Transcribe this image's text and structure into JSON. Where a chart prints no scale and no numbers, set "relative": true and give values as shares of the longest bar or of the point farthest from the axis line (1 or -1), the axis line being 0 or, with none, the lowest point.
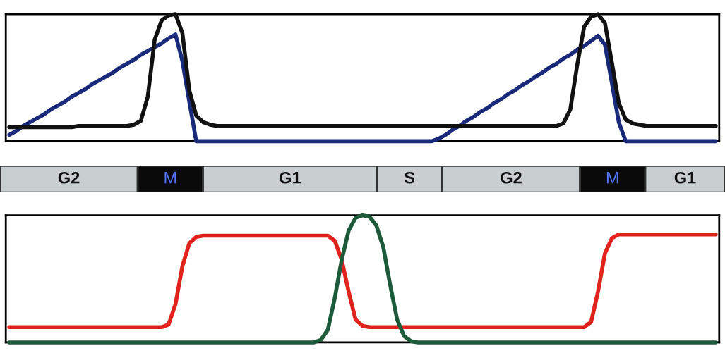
{
  "chart_data": [
    {
      "type": "line",
      "relative": true,
      "tick_labels": false,
      "legend": false,
      "categories": [
        null,
        null,
        null,
        null,
        null,
        null,
        null,
        null,
        null,
        null,
        null,
        null,
        null,
        null,
        null,
        null,
        null,
        null,
        null,
        null,
        null,
        null,
        null,
        null,
        null,
        null,
        null,
        null,
        null,
        null,
        null,
        null,
        null,
        null,
        null,
        null,
        null,
        null,
        null,
        null,
        null,
        null,
        null,
        null,
        null,
        null,
        null,
        null,
        null,
        null,
        null,
        null,
        null,
        null,
        null,
        null,
        null,
        null,
        null,
        null,
        null,
        null,
        null,
        null,
        null,
        null,
        null,
        null,
        null,
        null,
        null,
        null,
        null,
        null,
        null,
        null,
        null,
        null,
        null,
        null,
        null,
        null,
        null,
        null,
        null,
        null,
        null,
        null,
        null,
        null,
        null,
        null,
        null,
        null,
        null,
        null,
        null,
        null,
        null,
        null,
        null,
        null,
        null
      ],
      "series": [
        {
          "color": "#1a2a7a",
          "values": [
            0.05,
            0.08,
            0.12,
            0.15,
            0.18,
            0.21,
            0.25,
            0.28,
            0.31,
            0.35,
            0.38,
            0.41,
            0.45,
            0.48,
            0.51,
            0.54,
            0.58,
            0.61,
            0.64,
            0.68,
            0.71,
            0.74,
            0.77,
            0.81,
            0.84,
            0.63,
            0.31,
            0,
            0,
            0,
            0,
            0,
            0,
            0,
            0,
            0,
            0,
            0,
            0,
            0,
            0,
            0,
            0,
            0,
            0,
            0,
            0,
            0,
            0,
            0,
            0,
            0,
            0,
            0,
            0,
            0,
            0,
            0,
            0,
            0,
            0,
            0,
            0.02,
            0.05,
            0.09,
            0.12,
            0.16,
            0.19,
            0.23,
            0.26,
            0.3,
            0.33,
            0.37,
            0.4,
            0.44,
            0.47,
            0.51,
            0.54,
            0.58,
            0.61,
            0.65,
            0.68,
            0.72,
            0.75,
            0.79,
            0.83,
            0.76,
            0.46,
            0.15,
            0,
            0,
            0,
            0,
            0,
            0,
            0,
            0,
            0,
            0,
            0,
            0,
            0,
            0
          ]
        },
        {
          "color": "#111111",
          "values": [
            0.11,
            0.11,
            0.11,
            0.11,
            0.11,
            0.11,
            0.11,
            0.11,
            0.11,
            0.11,
            0.12,
            0.12,
            0.12,
            0.12,
            0.12,
            0.12,
            0.12,
            0.12,
            0.13,
            0.16,
            0.35,
            0.8,
            0.95,
            0.99,
            1.0,
            0.85,
            0.4,
            0.2,
            0.15,
            0.13,
            0.12,
            0.12,
            0.12,
            0.12,
            0.12,
            0.12,
            0.12,
            0.12,
            0.12,
            0.12,
            0.12,
            0.12,
            0.12,
            0.12,
            0.12,
            0.12,
            0.12,
            0.12,
            0.12,
            0.12,
            0.12,
            0.12,
            0.12,
            0.12,
            0.12,
            0.12,
            0.12,
            0.12,
            0.12,
            0.12,
            0.12,
            0.12,
            0.12,
            0.12,
            0.12,
            0.12,
            0.12,
            0.12,
            0.12,
            0.12,
            0.12,
            0.12,
            0.12,
            0.12,
            0.12,
            0.12,
            0.12,
            0.12,
            0.12,
            0.12,
            0.14,
            0.25,
            0.6,
            0.9,
            0.98,
            1.0,
            0.93,
            0.62,
            0.3,
            0.17,
            0.14,
            0.13,
            0.12,
            0.12,
            0.12,
            0.12,
            0.12,
            0.12,
            0.12,
            0.12,
            0.12,
            0.12,
            0.12
          ]
        }
      ]
    },
    {
      "type": "bar",
      "orientation": "horizontal",
      "stacked": true,
      "relative": true,
      "tick_labels": false,
      "legend": false,
      "categories": [
        null
      ],
      "series": [
        {
          "name": "G2",
          "color": "#c9ced1",
          "values": [
            0.19
          ]
        },
        {
          "name": "M",
          "color": "#0a0a0a",
          "values": [
            0.09
          ]
        },
        {
          "name": "G1",
          "color": "#c9ced1",
          "values": [
            0.24
          ]
        },
        {
          "name": "S",
          "color": "#c9ced1",
          "values": [
            0.09
          ]
        },
        {
          "name": "G2",
          "color": "#c9ced1",
          "values": [
            0.19
          ]
        },
        {
          "name": "M",
          "color": "#0a0a0a",
          "values": [
            0.09
          ]
        },
        {
          "name": "G1",
          "color": "#c9ced1",
          "values": [
            0.11
          ]
        }
      ]
    },
    {
      "type": "line",
      "relative": true,
      "tick_labels": false,
      "legend": false,
      "categories": [
        null,
        null,
        null,
        null,
        null,
        null,
        null,
        null,
        null,
        null,
        null,
        null,
        null,
        null,
        null,
        null,
        null,
        null,
        null,
        null,
        null,
        null,
        null,
        null,
        null,
        null,
        null,
        null,
        null,
        null,
        null,
        null,
        null,
        null,
        null,
        null,
        null,
        null,
        null,
        null,
        null,
        null,
        null,
        null,
        null,
        null,
        null,
        null,
        null,
        null,
        null,
        null,
        null,
        null,
        null,
        null,
        null,
        null,
        null,
        null,
        null,
        null,
        null,
        null,
        null,
        null,
        null,
        null,
        null,
        null,
        null,
        null,
        null,
        null,
        null,
        null,
        null,
        null,
        null,
        null,
        null,
        null,
        null,
        null,
        null,
        null,
        null,
        null,
        null,
        null,
        null,
        null,
        null,
        null,
        null,
        null,
        null,
        null,
        null,
        null,
        null,
        null,
        null
      ],
      "series": [
        {
          "color": "#e0231c",
          "values": [
            0.12,
            0.12,
            0.12,
            0.12,
            0.12,
            0.12,
            0.12,
            0.12,
            0.12,
            0.12,
            0.12,
            0.12,
            0.12,
            0.12,
            0.12,
            0.12,
            0.12,
            0.12,
            0.12,
            0.12,
            0.12,
            0.12,
            0.12,
            0.14,
            0.3,
            0.6,
            0.78,
            0.83,
            0.84,
            0.84,
            0.84,
            0.84,
            0.84,
            0.84,
            0.84,
            0.84,
            0.84,
            0.84,
            0.84,
            0.84,
            0.84,
            0.84,
            0.84,
            0.84,
            0.84,
            0.84,
            0.84,
            0.8,
            0.65,
            0.4,
            0.18,
            0.13,
            0.12,
            0.12,
            0.12,
            0.12,
            0.12,
            0.12,
            0.12,
            0.12,
            0.12,
            0.12,
            0.12,
            0.12,
            0.12,
            0.12,
            0.12,
            0.12,
            0.12,
            0.12,
            0.12,
            0.12,
            0.12,
            0.12,
            0.12,
            0.12,
            0.12,
            0.12,
            0.12,
            0.12,
            0.12,
            0.12,
            0.12,
            0.12,
            0.16,
            0.4,
            0.7,
            0.82,
            0.85,
            0.85,
            0.85,
            0.85,
            0.85,
            0.85,
            0.85,
            0.85,
            0.85,
            0.85,
            0.85,
            0.85,
            0.85,
            0.85,
            0.85
          ]
        },
        {
          "color": "#1d5a3a",
          "values": [
            0,
            0,
            0,
            0,
            0,
            0,
            0,
            0,
            0,
            0,
            0,
            0,
            0,
            0,
            0,
            0,
            0,
            0,
            0,
            0,
            0,
            0,
            0,
            0,
            0,
            0,
            0,
            0,
            0,
            0,
            0,
            0,
            0,
            0,
            0,
            0,
            0,
            0,
            0,
            0,
            0,
            0,
            0,
            0,
            0,
            0.02,
            0.1,
            0.35,
            0.65,
            0.88,
            0.98,
            1.0,
            0.99,
            0.92,
            0.75,
            0.45,
            0.18,
            0.05,
            0.01,
            0,
            0,
            0,
            0,
            0,
            0,
            0,
            0,
            0,
            0,
            0,
            0,
            0,
            0,
            0,
            0,
            0,
            0,
            0,
            0,
            0,
            0,
            0,
            0,
            0,
            0,
            0,
            0,
            0,
            0,
            0,
            0,
            0,
            0,
            0,
            0,
            0,
            0,
            0,
            0,
            0,
            0,
            0,
            0
          ]
        }
      ]
    }
  ]
}
